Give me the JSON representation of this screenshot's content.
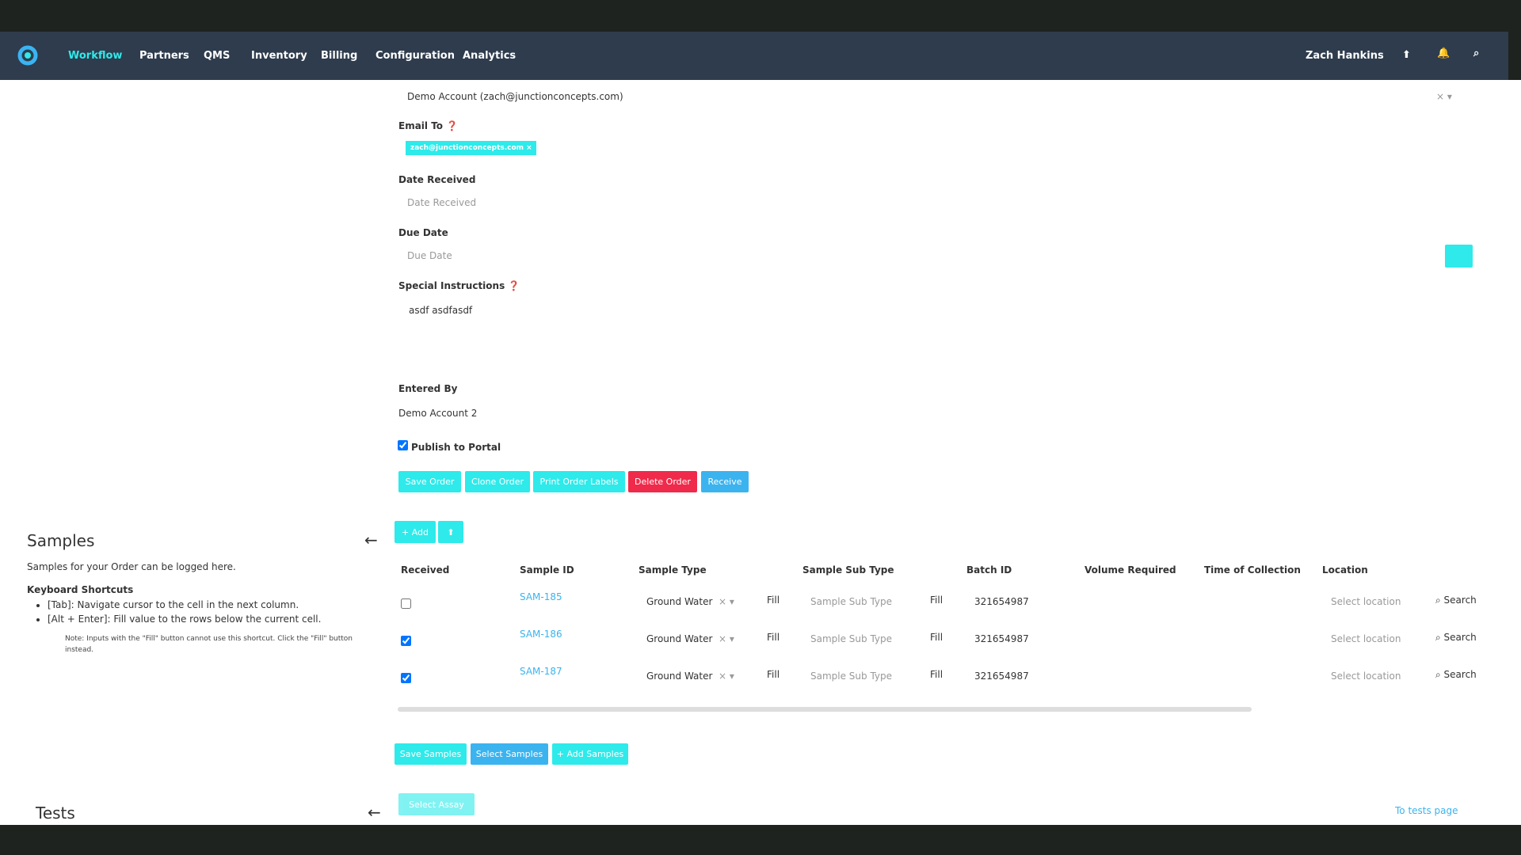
{
  "nav": {
    "items": [
      "Workflow",
      "Partners",
      "QMS",
      "Inventory",
      "Billing",
      "Configuration",
      "Analytics"
    ],
    "user": "Zach Hankins"
  },
  "form": {
    "account": "Demo Account (zach@junctionconcepts.com)",
    "email_to_label": "Email To",
    "email_tag": "zach@junctionconcepts.com",
    "date_received_label": "Date Received",
    "date_received_placeholder": "Date Received",
    "due_date_label": "Due Date",
    "due_date_placeholder": "Due Date",
    "special_instructions_label": "Special Instructions",
    "special_instructions": "asdf asdfasdf",
    "entered_by_label": "Entered By",
    "entered_by": "Demo Account 2",
    "publish_label": "Publish to Portal",
    "buttons": [
      "Save Order",
      "Clone Order",
      "Print Order Labels",
      "Delete Order",
      "Receive"
    ]
  },
  "samples": {
    "title": "Samples",
    "description": "Samples for your Order can be logged here.",
    "shortcuts_title": "Keyboard Shortcuts",
    "shortcuts": [
      "[Tab]: Navigate cursor to the cell in the next column.",
      "[Alt + Enter]: Fill value to the rows below the current cell."
    ],
    "note": "Note: Inputs with the \"Fill\" button cannot use this shortcut. Click the \"Fill\" button instead.",
    "add_button": "+ Add",
    "columns": [
      "Received",
      "Sample ID",
      "Sample Type",
      "Sample Sub Type",
      "Batch ID",
      "Volume Required",
      "Time of Collection",
      "Location"
    ],
    "rows": [
      {
        "received": false,
        "id": "SAM-185",
        "type": "Ground Water",
        "batch": "321654987"
      },
      {
        "received": true,
        "id": "SAM-186",
        "type": "Ground Water",
        "batch": "321654987"
      },
      {
        "received": true,
        "id": "SAM-187",
        "type": "Ground Water",
        "batch": "321654987"
      }
    ],
    "fill": "Fill",
    "sub_type_placeholder": "Sample Sub Type",
    "location_placeholder": "Select location",
    "search": "Search",
    "buttons": [
      "Save Samples",
      "Select Samples",
      "+ Add Samples"
    ]
  },
  "tests": {
    "title": "Tests",
    "select_assay": "Select Assay",
    "link": "To tests page"
  }
}
